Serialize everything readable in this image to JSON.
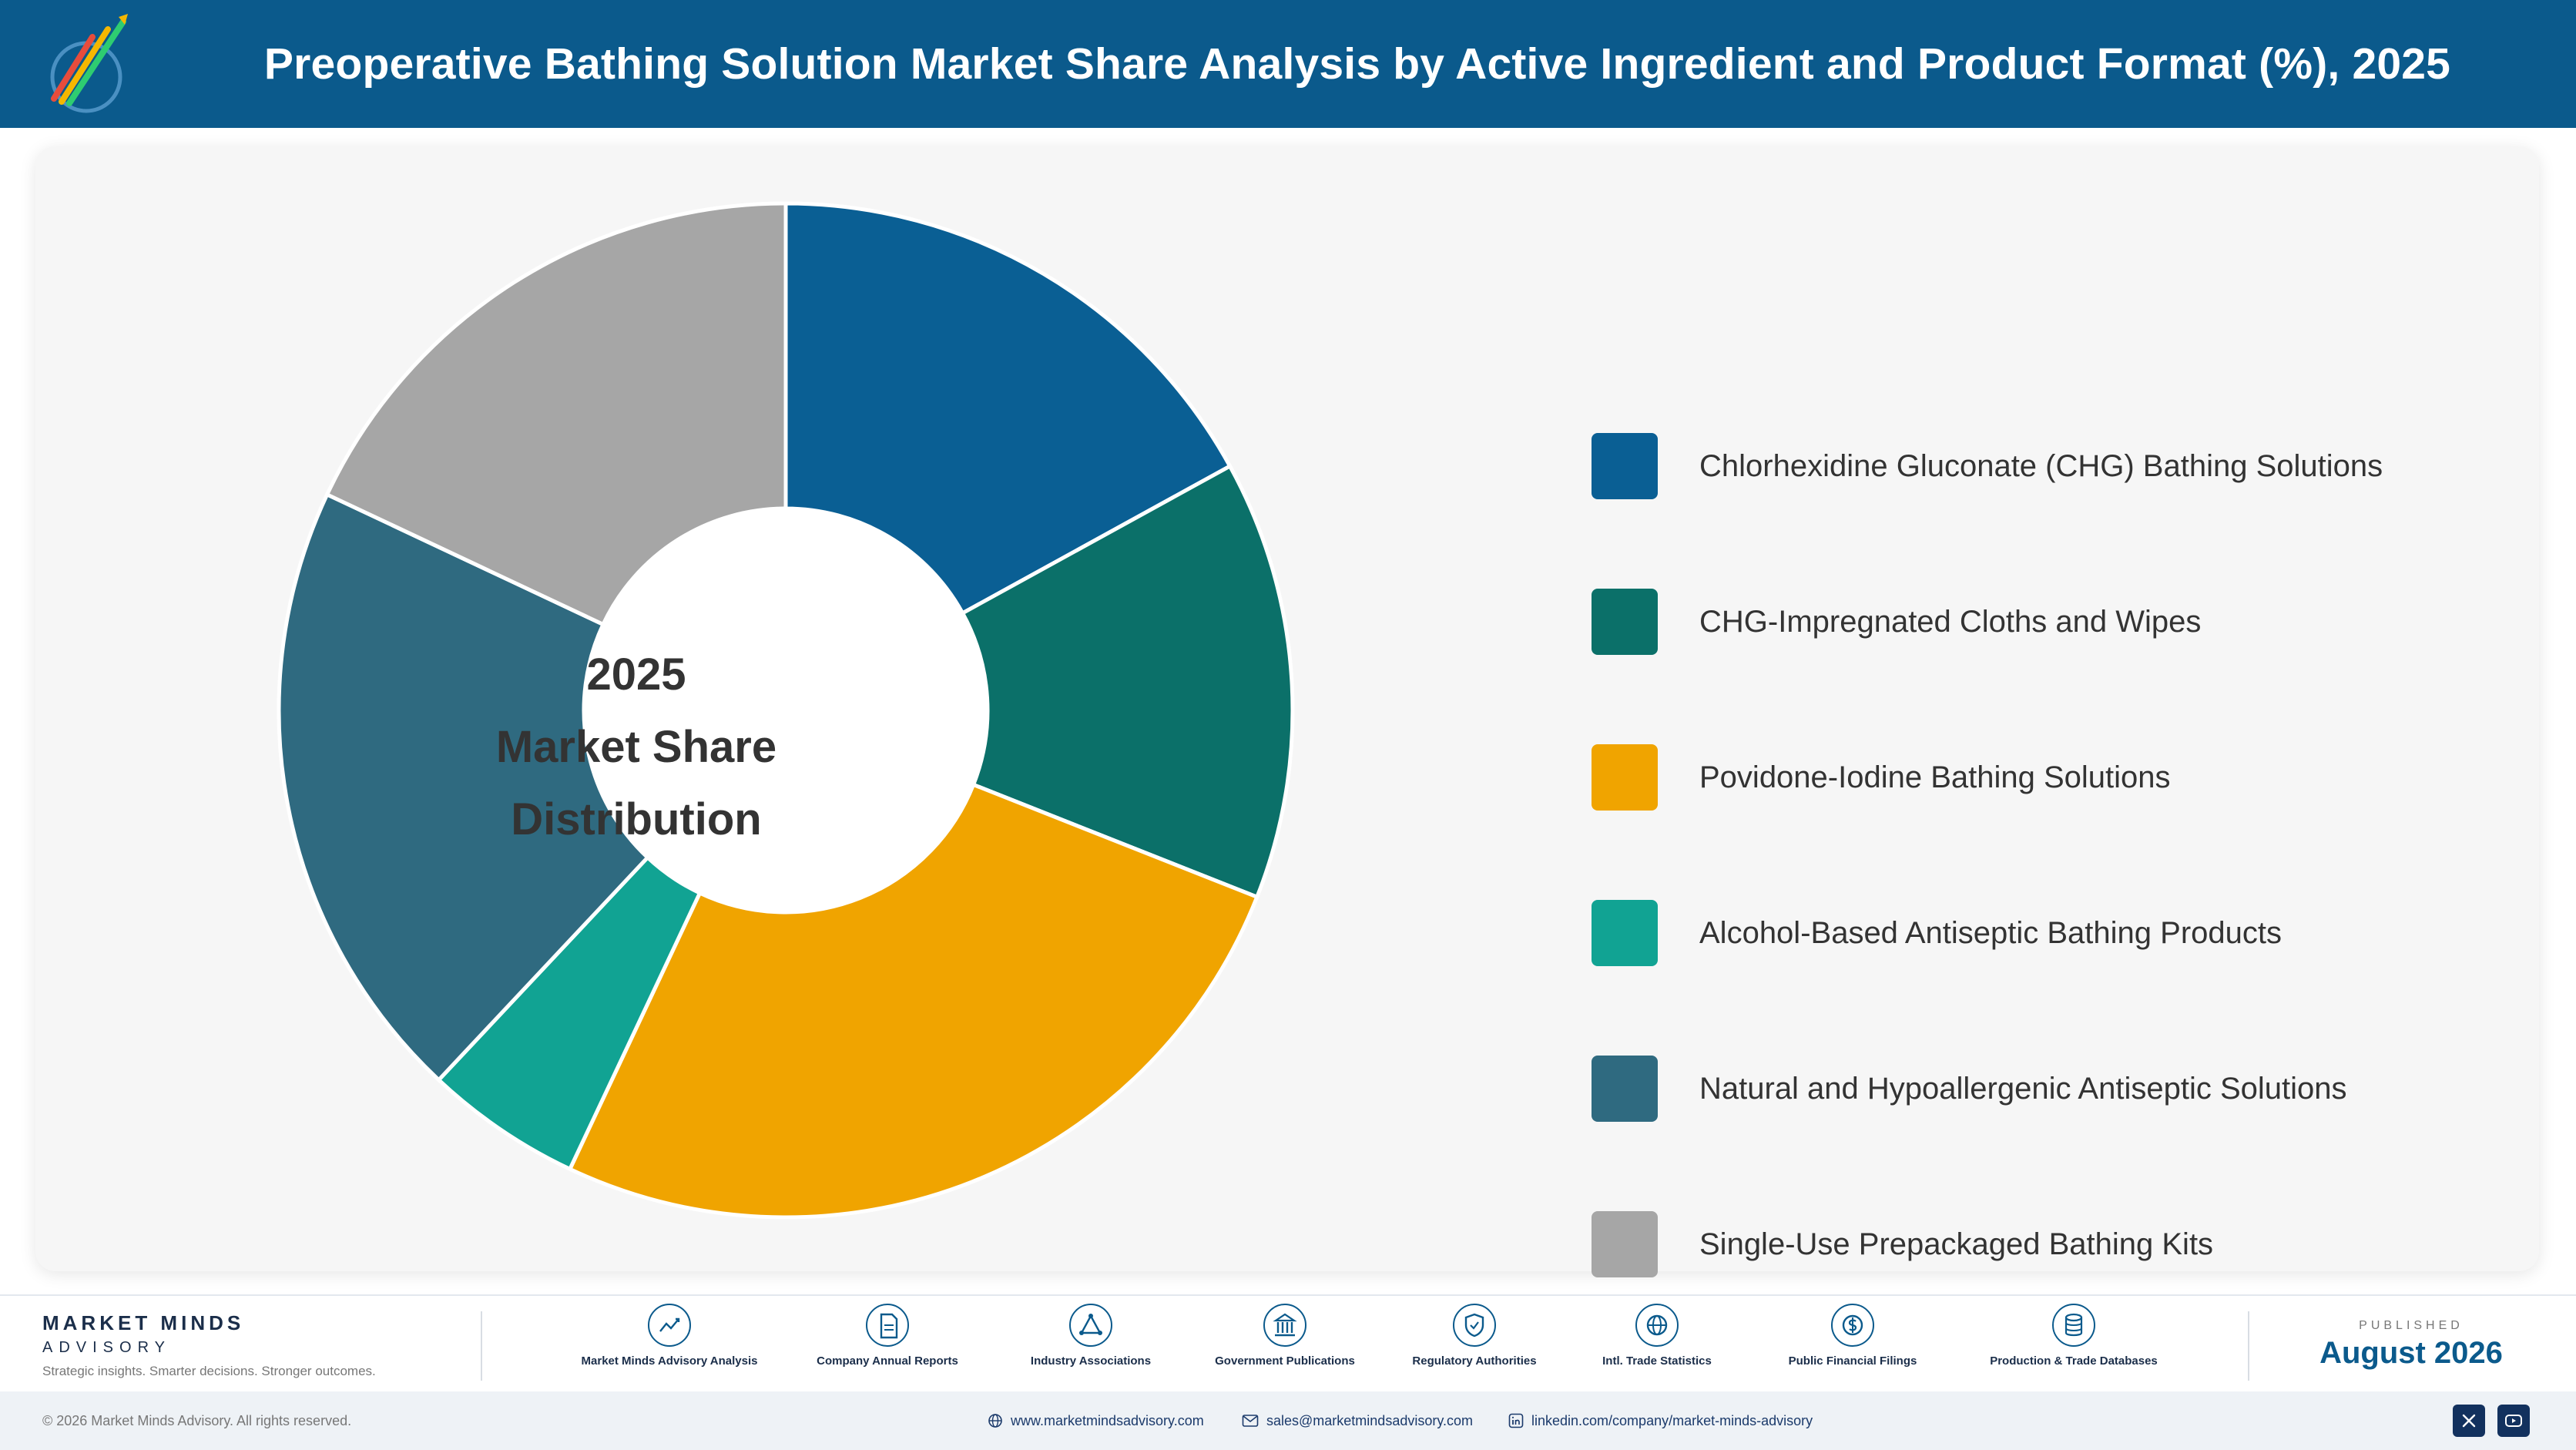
{
  "header": {
    "title": "Preoperative Bathing Solution Market Share Analysis by Active Ingredient and Product Format (%), 2025"
  },
  "chart_data": {
    "type": "pie",
    "variant": "donut",
    "center_label": [
      "2025",
      "Market Share",
      "Distribution"
    ],
    "categories": [
      "Chlorhexidine Gluconate (CHG) Bathing Solutions",
      "CHG-Impregnated Cloths and Wipes",
      "Povidone-Iodine Bathing Solutions",
      "Alcohol-Based Antiseptic Bathing Products",
      "Natural and Hypoallergenic Antiseptic Solutions",
      "Single-Use Prepackaged Bathing Kits"
    ],
    "values": [
      17,
      14,
      26,
      5,
      20,
      18
    ],
    "colors": [
      "#0a5f94",
      "#0b7069",
      "#f0a400",
      "#11a393",
      "#2f6a80",
      "#a6a6a6"
    ],
    "legend_position": "right"
  },
  "footer": {
    "brand_name": "MARKET MINDS",
    "brand_sub": "ADVISORY",
    "tagline": "Strategic insights. Smarter decisions. Stronger outcomes.",
    "sources": [
      {
        "label": "Market Minds Advisory Analysis",
        "icon": "chart-line-icon"
      },
      {
        "label": "Company Annual Reports",
        "icon": "document-icon"
      },
      {
        "label": "Industry Associations",
        "icon": "network-icon"
      },
      {
        "label": "Government Publications",
        "icon": "building-icon"
      },
      {
        "label": "Regulatory Authorities",
        "icon": "shield-icon"
      },
      {
        "label": "Intl. Trade Statistics",
        "icon": "globe-icon"
      },
      {
        "label": "Public Financial Filings",
        "icon": "dollar-icon"
      },
      {
        "label": "Production & Trade Databases",
        "icon": "database-icon"
      }
    ],
    "published_label": "PUBLISHED",
    "published_date": "August 2026"
  },
  "bottombar": {
    "copyright": "© 2026 Market Minds Advisory. All rights reserved.",
    "website": "www.marketmindsadvisory.com",
    "email": "sales@marketmindsadvisory.com",
    "linkedin": "linkedin.com/company/market-minds-advisory",
    "social": [
      "x-icon",
      "youtube-icon"
    ]
  }
}
